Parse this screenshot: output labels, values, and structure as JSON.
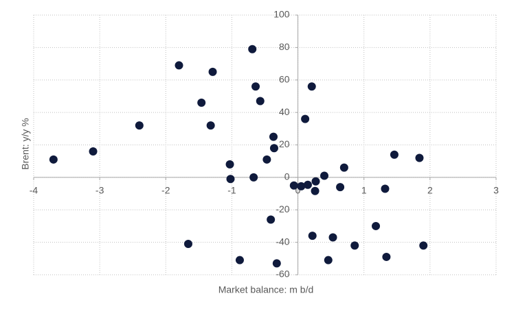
{
  "chart_data": {
    "type": "scatter",
    "x_label": "Market balance: m b/d",
    "y_label": "Brent: y/y %",
    "x": [
      -3.7,
      -3.1,
      -2.4,
      -1.8,
      -1.66,
      -1.46,
      -1.29,
      -1.32,
      -1.03,
      -1.02,
      -0.88,
      -0.69,
      -0.64,
      -0.67,
      -0.57,
      -0.47,
      -0.41,
      -0.37,
      -0.36,
      -0.32,
      -0.06,
      0.05,
      0.11,
      0.15,
      0.21,
      0.22,
      0.26,
      0.27,
      0.4,
      0.46,
      0.53,
      0.64,
      0.7,
      0.86,
      1.18,
      1.32,
      1.34,
      1.46,
      1.84,
      1.9
    ],
    "values": [
      11,
      16,
      32,
      69,
      -41,
      46,
      65,
      32,
      8,
      -1,
      -51,
      79,
      56,
      0,
      47,
      11,
      -26,
      25,
      18,
      -53,
      -5,
      -5.5,
      36,
      -4.6,
      56,
      -36,
      -8.4,
      -2.5,
      1,
      -51,
      -37,
      -6,
      6,
      -42,
      -30,
      -7,
      -49,
      14,
      12,
      -42
    ],
    "color": "#0f1a3c",
    "xlim": [
      -4,
      3
    ],
    "xticks": [
      -4,
      -3,
      -2,
      -1,
      0,
      1,
      2,
      3
    ],
    "ylim": [
      -60,
      100
    ],
    "yticks": [
      -60,
      -40,
      -20,
      0,
      20,
      40,
      60,
      80,
      100
    ],
    "grid": true
  }
}
